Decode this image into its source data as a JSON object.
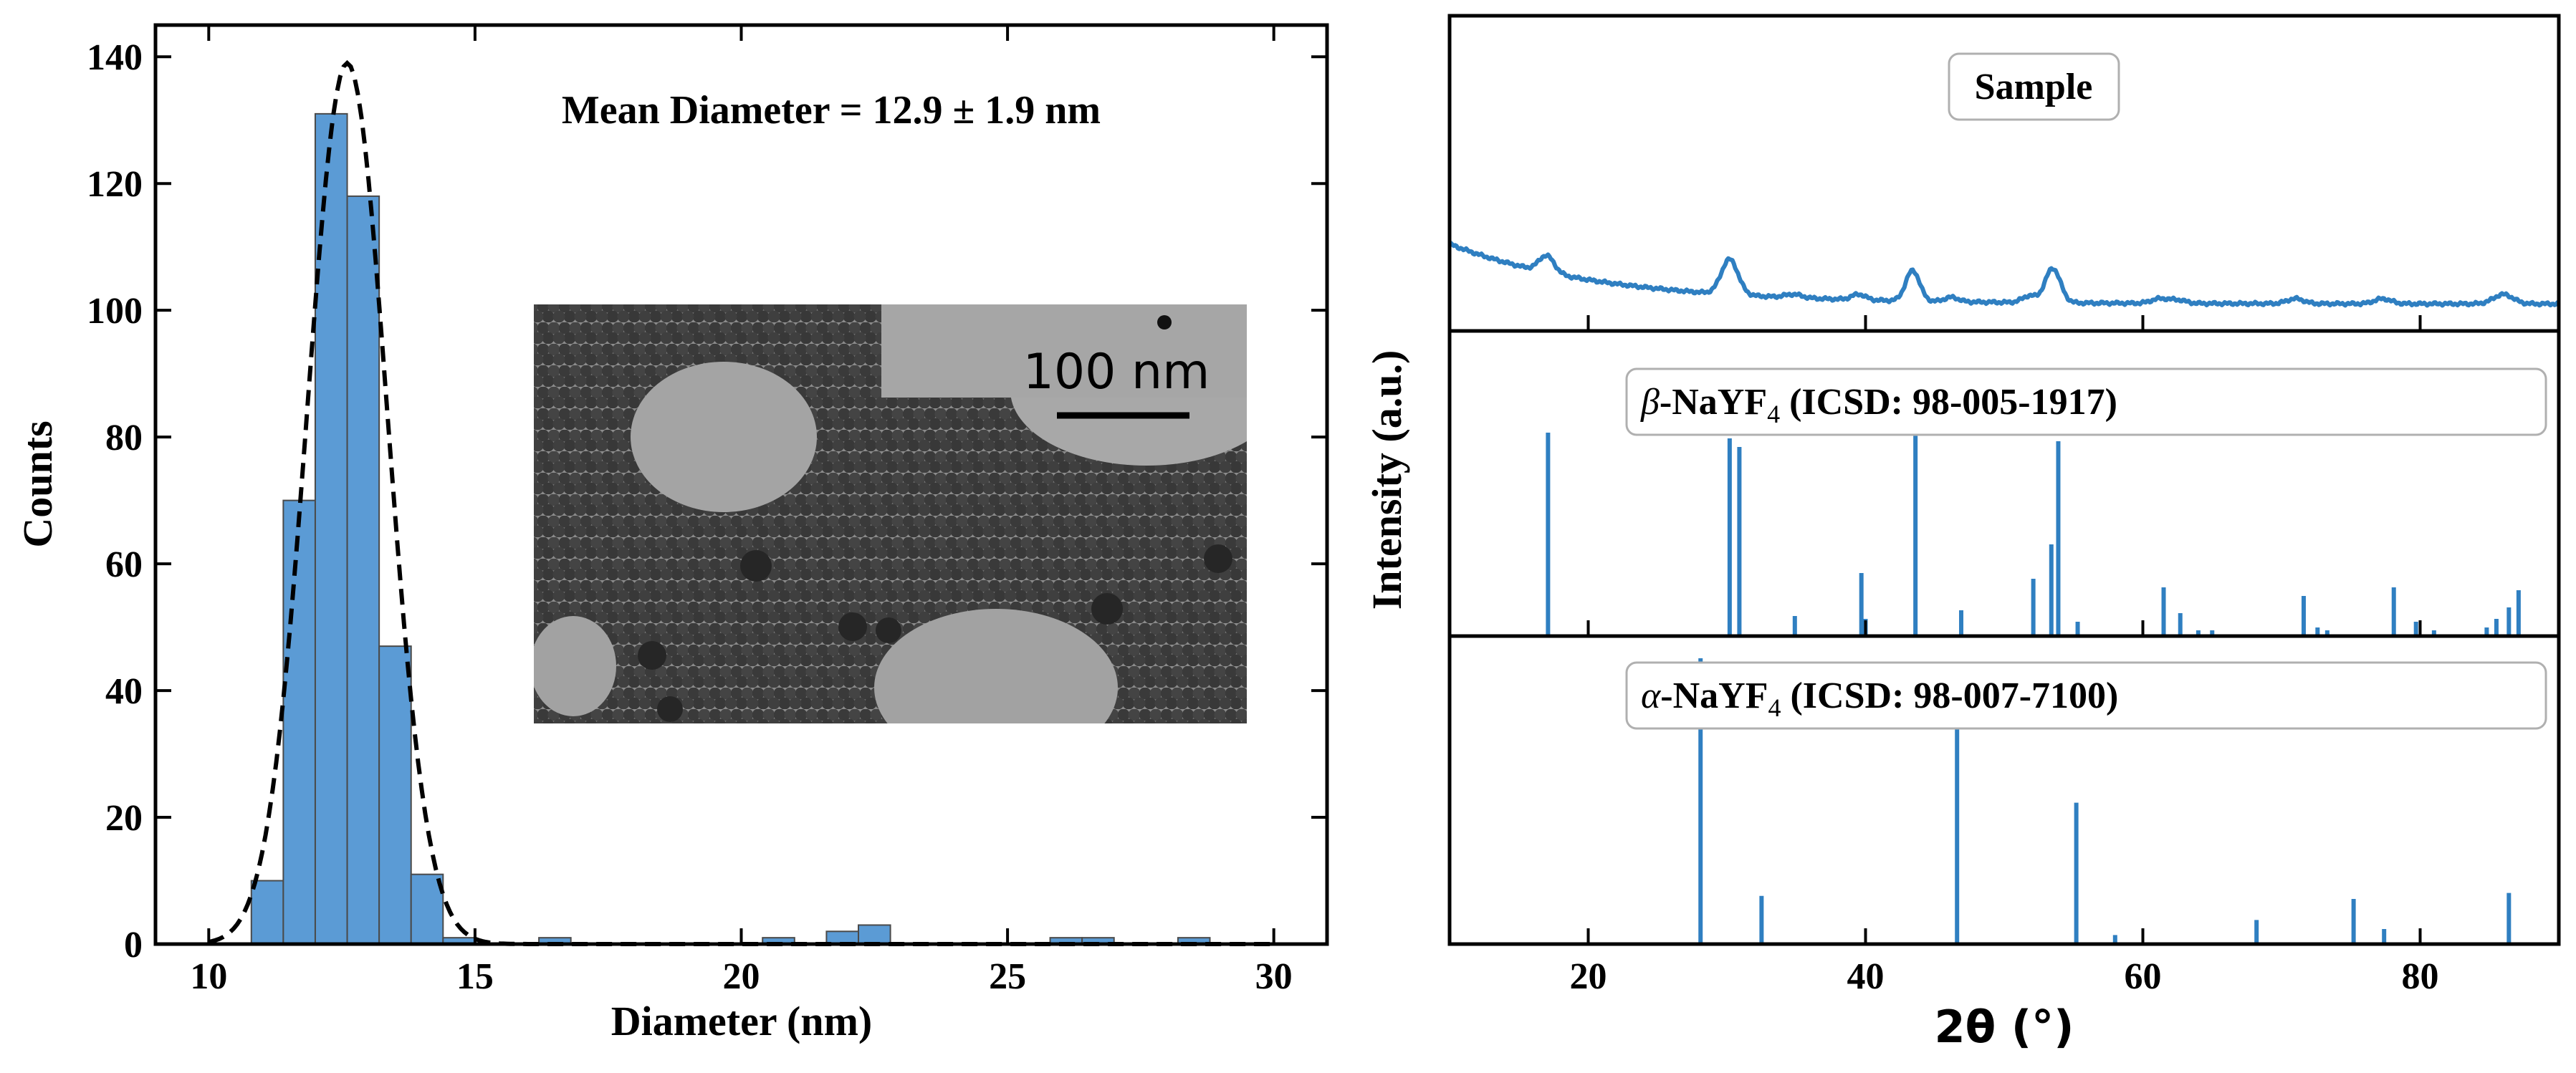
{
  "colors": {
    "bar_fill": "#5b9bd5",
    "bar_edge": "#4a4a4a",
    "line_blue": "#2f7fc1",
    "axis": "#000000",
    "fit_line": "#000000",
    "tem_bg": "#9a9a9a"
  },
  "chart_data": [
    {
      "type": "bar",
      "name": "histogram",
      "title": "",
      "annotation": "Mean Diameter = 12.9 ± 1.9 nm",
      "xlabel": "Diameter (nm)",
      "ylabel": "Counts",
      "xlim": [
        9,
        31
      ],
      "ylim": [
        0,
        145
      ],
      "xticks": [
        10,
        15,
        20,
        25,
        30
      ],
      "xtick_labels": [
        "10",
        "15",
        "20",
        "25",
        "30"
      ],
      "yticks": [
        0,
        20,
        40,
        60,
        80,
        100,
        120,
        140
      ],
      "ytick_labels": [
        "0",
        "20",
        "40",
        "60",
        "80",
        "100",
        "120",
        "140"
      ],
      "bin_width": 0.6,
      "bins": [
        {
          "x": 10.8,
          "value": 10
        },
        {
          "x": 11.4,
          "value": 70
        },
        {
          "x": 12.0,
          "value": 131
        },
        {
          "x": 12.6,
          "value": 118
        },
        {
          "x": 13.2,
          "value": 47
        },
        {
          "x": 13.8,
          "value": 11
        },
        {
          "x": 14.4,
          "value": 1
        },
        {
          "x": 16.2,
          "value": 1
        },
        {
          "x": 20.4,
          "value": 1
        },
        {
          "x": 21.6,
          "value": 2
        },
        {
          "x": 22.2,
          "value": 3
        },
        {
          "x": 25.8,
          "value": 1
        },
        {
          "x": 26.4,
          "value": 1
        },
        {
          "x": 28.2,
          "value": 1
        }
      ],
      "fit": {
        "type": "gaussian",
        "mean": 12.6,
        "sigma": 0.75,
        "amplitude": 139,
        "style": "dashed"
      },
      "inset": {
        "label": "TEM micrograph",
        "scale_bar": "100 nm"
      }
    },
    {
      "type": "line",
      "name": "xrd",
      "xlabel": "2θ (°)",
      "ylabel": "Intensity (a.u.)",
      "xlim": [
        10,
        90
      ],
      "xticks": [
        20,
        40,
        60,
        80
      ],
      "xtick_labels": [
        "20",
        "40",
        "60",
        "80"
      ],
      "panels": [
        {
          "label": "Sample",
          "kind": "line",
          "baseline": {
            "start": 1.0,
            "decay": 0.55,
            "floor": 0.12
          },
          "peaks": [
            {
              "x": 17.0,
              "height": 0.3,
              "width": 0.55
            },
            {
              "x": 30.2,
              "height": 0.63,
              "width": 0.6
            },
            {
              "x": 34.8,
              "height": 0.06,
              "width": 0.6
            },
            {
              "x": 39.5,
              "height": 0.1,
              "width": 0.5
            },
            {
              "x": 43.4,
              "height": 0.55,
              "width": 0.5
            },
            {
              "x": 46.2,
              "height": 0.08,
              "width": 0.5
            },
            {
              "x": 51.8,
              "height": 0.12,
              "width": 0.5
            },
            {
              "x": 53.5,
              "height": 0.62,
              "width": 0.55
            },
            {
              "x": 61.2,
              "height": 0.08,
              "width": 0.6
            },
            {
              "x": 62.5,
              "height": 0.06,
              "width": 0.6
            },
            {
              "x": 71.0,
              "height": 0.09,
              "width": 0.6
            },
            {
              "x": 77.3,
              "height": 0.09,
              "width": 0.6
            },
            {
              "x": 86.0,
              "height": 0.17,
              "width": 0.7
            }
          ]
        },
        {
          "label_prefix": "β",
          "label": "-NaYF",
          "label_sub": "4",
          "label_suffix": " (ICSD: 98-005-1917)",
          "kind": "sticks",
          "sticks": [
            {
              "x": 17.1,
              "h": 0.71
            },
            {
              "x": 30.2,
              "h": 0.69
            },
            {
              "x": 30.9,
              "h": 0.66
            },
            {
              "x": 34.9,
              "h": 0.07
            },
            {
              "x": 39.7,
              "h": 0.22
            },
            {
              "x": 40.0,
              "h": 0.06
            },
            {
              "x": 43.6,
              "h": 0.81
            },
            {
              "x": 46.9,
              "h": 0.09
            },
            {
              "x": 52.1,
              "h": 0.2
            },
            {
              "x": 53.4,
              "h": 0.32
            },
            {
              "x": 53.9,
              "h": 0.68
            },
            {
              "x": 55.3,
              "h": 0.05
            },
            {
              "x": 61.5,
              "h": 0.17
            },
            {
              "x": 62.7,
              "h": 0.08
            },
            {
              "x": 64.0,
              "h": 0.02
            },
            {
              "x": 65.0,
              "h": 0.02
            },
            {
              "x": 71.6,
              "h": 0.14
            },
            {
              "x": 72.6,
              "h": 0.03
            },
            {
              "x": 73.3,
              "h": 0.02
            },
            {
              "x": 78.1,
              "h": 0.17
            },
            {
              "x": 79.7,
              "h": 0.05
            },
            {
              "x": 81.0,
              "h": 0.02
            },
            {
              "x": 84.8,
              "h": 0.03
            },
            {
              "x": 85.5,
              "h": 0.06
            },
            {
              "x": 86.4,
              "h": 0.1
            },
            {
              "x": 87.1,
              "h": 0.16
            }
          ]
        },
        {
          "label_prefix": "α",
          "label": "-NaYF",
          "label_sub": "4",
          "label_suffix": " (ICSD: 98-007-7100)",
          "kind": "sticks",
          "sticks": [
            {
              "x": 28.1,
              "h": 0.95
            },
            {
              "x": 32.5,
              "h": 0.16
            },
            {
              "x": 46.6,
              "h": 0.79
            },
            {
              "x": 55.2,
              "h": 0.47
            },
            {
              "x": 58.0,
              "h": 0.03
            },
            {
              "x": 68.2,
              "h": 0.08
            },
            {
              "x": 75.2,
              "h": 0.15
            },
            {
              "x": 77.4,
              "h": 0.05
            },
            {
              "x": 86.4,
              "h": 0.17
            }
          ]
        }
      ]
    }
  ]
}
